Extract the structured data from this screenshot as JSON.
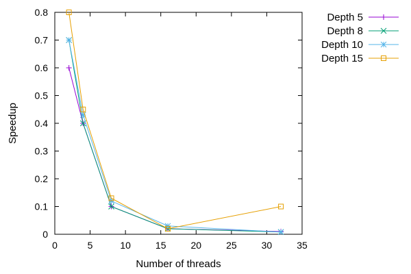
{
  "chart_data": {
    "type": "line",
    "xlabel": "Number of threads",
    "ylabel": "Speedup",
    "xlim": [
      0,
      35
    ],
    "ylim": [
      0,
      0.8
    ],
    "xticks": [
      0,
      5,
      10,
      15,
      20,
      25,
      30,
      35
    ],
    "yticks": [
      0,
      0.1,
      0.2,
      0.3,
      0.4,
      0.5,
      0.6,
      0.7,
      0.8
    ],
    "xtick_labels": [
      "0",
      "5",
      "10",
      "15",
      "20",
      "25",
      "30",
      "35"
    ],
    "ytick_labels": [
      "0",
      "0.1",
      "0.2",
      "0.3",
      "0.4",
      "0.5",
      "0.6",
      "0.7",
      "0.8"
    ],
    "grid": false,
    "legend_position": "outside-top-right",
    "x": [
      2,
      4,
      8,
      16,
      32
    ],
    "series": [
      {
        "name": "Depth 5",
        "values": [
          0.6,
          0.4,
          0.1,
          0.02,
          0.01
        ],
        "color": "#9400d3",
        "marker": "plus"
      },
      {
        "name": "Depth 8",
        "values": [
          0.7,
          0.4,
          0.1,
          0.02,
          0.008
        ],
        "color": "#009e73",
        "marker": "cross"
      },
      {
        "name": "Depth 10",
        "values": [
          0.7,
          0.43,
          0.12,
          0.03,
          0.008
        ],
        "color": "#56b4e9",
        "marker": "star"
      },
      {
        "name": "Depth 15",
        "values": [
          0.8,
          0.45,
          0.13,
          0.02,
          0.1
        ],
        "color": "#e69f00",
        "marker": "square"
      }
    ]
  }
}
